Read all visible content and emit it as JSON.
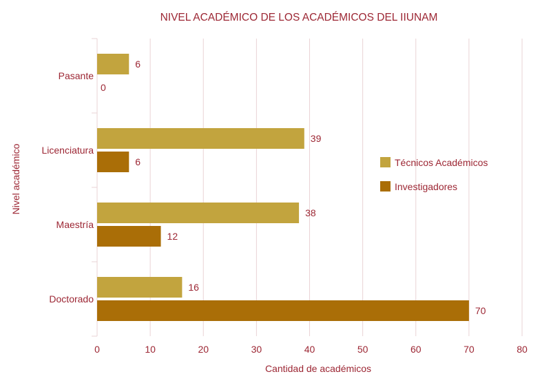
{
  "chart_data": {
    "type": "bar",
    "orientation": "horizontal",
    "title": "NIVEL ACADÉMICO DE LOS ACADÉMICOS DEL IIUNAM",
    "xlabel": "Cantidad de académicos",
    "ylabel": "Nivel académico",
    "categories": [
      "Pasante",
      "Licenciatura",
      "Maestría",
      "Doctorado"
    ],
    "series": [
      {
        "name": "Técnicos Académicos",
        "color": "#c2a43e",
        "values": [
          6,
          39,
          38,
          16
        ]
      },
      {
        "name": "Investigadores",
        "color": "#aa6e07",
        "values": [
          0,
          6,
          12,
          70
        ]
      }
    ],
    "xlim": [
      0,
      80
    ],
    "xticks": [
      0,
      10,
      20,
      30,
      40,
      50,
      60,
      70,
      80
    ],
    "grid": "vertical",
    "legend": "right",
    "text_color": "#9c2633",
    "grid_color": "#ead3d5"
  }
}
